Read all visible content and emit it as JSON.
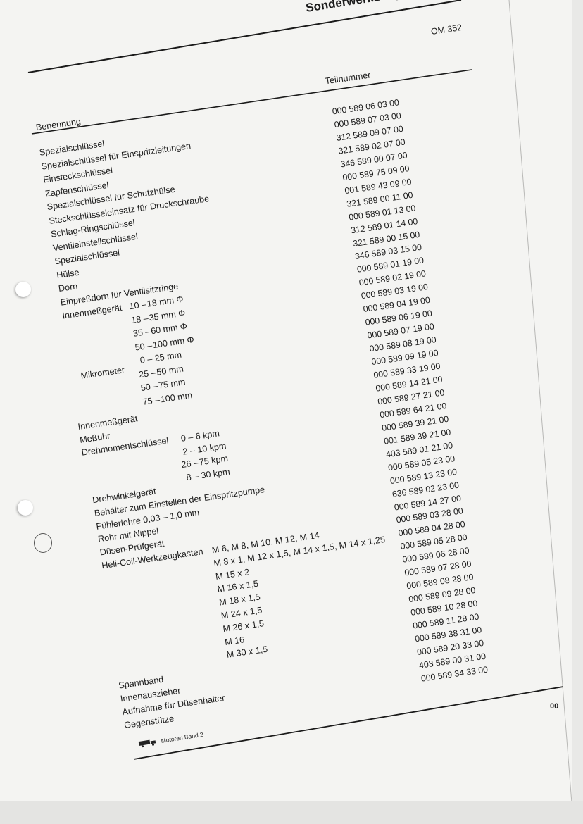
{
  "document": {
    "title": "Sonderwerkzeug",
    "model": "OM 352",
    "page_number": "00",
    "footer": {
      "icon": "truck-icon",
      "text": "Motoren Band 2"
    }
  },
  "table": {
    "headers": {
      "name": "Benennung",
      "part_number": "Teilnummer"
    },
    "names": [
      {
        "name": "Spezialschlüssel"
      },
      {
        "name": "Spezialschlüssel für Einspritzleitungen"
      },
      {
        "name": "Einsteckschlüssel"
      },
      {
        "name": "Zapfenschlüssel"
      },
      {
        "name": "Spezialschlüssel für Schutzhülse"
      },
      {
        "name": "Steckschlüsseleinsatz für Druckschraube"
      },
      {
        "name": "Schlag-Ringschlüssel"
      },
      {
        "name": "Ventileinstellschlüssel"
      },
      {
        "name": "Spezialschlüssel"
      },
      {
        "name": "Hülse"
      },
      {
        "name": "Dorn"
      },
      {
        "name": "Einpreßdorn für Ventilsitzringe"
      },
      {
        "name": "Innenmeßgerät",
        "from": "10 –",
        "spec": " 18 mm Φ"
      },
      {
        "name": "",
        "from": "18 –",
        "spec": " 35 mm Φ"
      },
      {
        "name": "",
        "from": "35 –",
        "spec": " 60 mm Φ"
      },
      {
        "name": "",
        "from": "50 –",
        "spec": " 100 mm Φ"
      },
      {
        "name": "",
        "from": "0 –",
        "spec": " 25 mm"
      },
      {
        "name": "",
        "from": "25 –",
        "spec": " 50 mm"
      },
      {
        "name": "",
        "from": "50 –",
        "spec": " 75 mm"
      },
      {
        "name": "",
        "from": "75 –",
        "spec": " 100 mm"
      },
      {
        "name": "Innenmeßgerät"
      },
      {
        "name": "Meßuhr"
      },
      {
        "name": "Drehmomentschlüssel",
        "from": "0 –",
        "spec": " 6 kpm"
      },
      {
        "name": "",
        "from": "2 –",
        "spec": " 10 kpm"
      },
      {
        "name": "",
        "from": "26 –",
        "spec": " 75 kpm"
      },
      {
        "name": "",
        "from": "8 –",
        "spec": " 30 kpm"
      },
      {
        "name": "Drehwinkelgerät"
      },
      {
        "name": "Behälter zum Einstellen der Einspritzpumpe"
      },
      {
        "name": "Fühlerlehre 0,03 – 1,0 mm"
      },
      {
        "name": "Rohr mit Nippel"
      },
      {
        "name": "Düsen-Prüfgerät"
      },
      {
        "name": "Heli-Coil-Werkzeugkasten",
        "spec": "M 6, M 8, M 10, M 12, M 14"
      },
      {
        "name": "",
        "spec": "M 8 x 1, M 12 x 1,5, M 14 x 1,5, M 14 x 1,25"
      },
      {
        "name": "",
        "spec": "M 15 x 2"
      },
      {
        "name": "",
        "spec": "M 16 x 1,5"
      },
      {
        "name": "",
        "spec": "M 18 x 1,5"
      },
      {
        "name": "",
        "spec": "M 24 x 1,5"
      },
      {
        "name": "",
        "spec": "M 26 x 1,5"
      },
      {
        "name": "",
        "spec": "M 16"
      },
      {
        "name": "",
        "spec": "M 30 x 1,5"
      },
      {
        "name": "Spannband"
      },
      {
        "name": "Innenauszieher"
      },
      {
        "name": "Aufnahme für Düsenhalter"
      },
      {
        "name": "Gegenstütze"
      }
    ],
    "mikrometer_label": "Mikrometer",
    "part_numbers": [
      "000 589 06 03 00",
      "000 589 07 03 00",
      "312 589 09 07 00",
      "321 589 02 07 00",
      "346 589 00 07 00",
      "000 589 75 09 00",
      "001 589 43 09 00",
      "321 589 00 11 00",
      "000 589 01 13 00",
      "312 589 01 14 00",
      "321 589 00 15 00",
      "346 589 03 15 00",
      "000 589 01 19 00",
      "000 589 02 19 00",
      "000 589 03 19 00",
      "000 589 04 19 00",
      "000 589 06 19 00",
      "000 589 07 19 00",
      "000 589 08 19 00",
      "000 589 09 19 00",
      "000 589 33 19 00",
      "000 589 14 21 00",
      "000 589 27 21 00",
      "000 589 64 21 00",
      "000 589 39 21 00",
      "001 589 39 21 00",
      "403 589 01 21 00",
      "000 589 05 23 00",
      "000 589 13 23 00",
      "636 589 02 23 00",
      "000 589 14 27 00",
      "000 589 03 28 00",
      "000 589 04 28 00",
      "000 589 05 28 00",
      "000 589 06 28 00",
      "000 589 07 28 00",
      "000 589 08 28 00",
      "000 589 09 28 00",
      "000 589 10 28 00",
      "000 589 11 28 00",
      "000 589 38 31 00",
      "000 589 20 33 00",
      "403 589 00 31 00",
      "000 589 34 33 00"
    ]
  }
}
